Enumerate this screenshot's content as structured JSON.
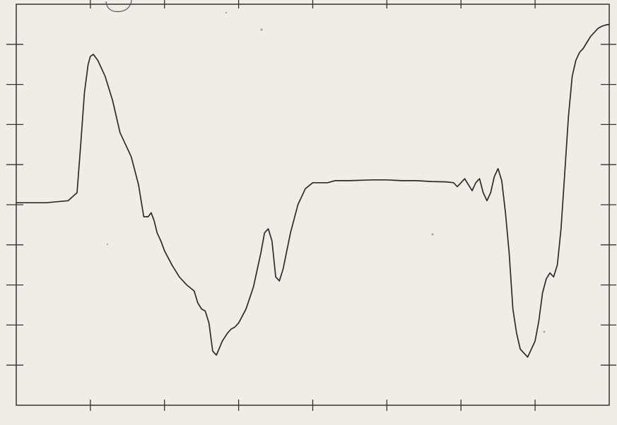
{
  "chart_data": {
    "type": "line",
    "title": "",
    "xlabel": "",
    "ylabel": "",
    "xlim": [
      0,
      8
    ],
    "ylim": [
      0,
      10
    ],
    "grid": false,
    "legend": "none",
    "x_tick_values": [
      1,
      2,
      3,
      4,
      5,
      6,
      7
    ],
    "y_left_tick_values": [
      1,
      2,
      3,
      4,
      5,
      6,
      7,
      8,
      9
    ],
    "y_right_tick_values": [
      1,
      2,
      3,
      4,
      5,
      6,
      7,
      8,
      9
    ],
    "series": [
      {
        "color": "#2b2b2b",
        "x": [
          0.0,
          0.4,
          0.7,
          0.82,
          0.87,
          0.92,
          0.97,
          1.0,
          1.04,
          1.1,
          1.2,
          1.3,
          1.4,
          1.55,
          1.65,
          1.72,
          1.78,
          1.82,
          1.86,
          1.9,
          1.95,
          2.0,
          2.1,
          2.2,
          2.3,
          2.4,
          2.45,
          2.5,
          2.55,
          2.6,
          2.65,
          2.7,
          2.78,
          2.85,
          2.9,
          2.95,
          3.0,
          3.1,
          3.2,
          3.3,
          3.35,
          3.4,
          3.45,
          3.5,
          3.55,
          3.6,
          3.7,
          3.8,
          3.9,
          4.0,
          4.1,
          4.2,
          4.3,
          4.5,
          4.8,
          5.0,
          5.2,
          5.4,
          5.6,
          5.8,
          5.9,
          5.95,
          6.0,
          6.05,
          6.1,
          6.15,
          6.2,
          6.25,
          6.3,
          6.35,
          6.4,
          6.45,
          6.5,
          6.55,
          6.6,
          6.65,
          6.7,
          6.75,
          6.8,
          6.9,
          7.0,
          7.05,
          7.1,
          7.15,
          7.2,
          7.25,
          7.3,
          7.35,
          7.4,
          7.45,
          7.5,
          7.55,
          7.6,
          7.65,
          7.7,
          7.75,
          7.8,
          7.85,
          7.9,
          7.95,
          8.0
        ],
        "values": [
          5.05,
          5.05,
          5.1,
          5.3,
          6.5,
          7.8,
          8.5,
          8.7,
          8.75,
          8.6,
          8.2,
          7.6,
          6.8,
          6.2,
          5.5,
          4.7,
          4.7,
          4.8,
          4.6,
          4.3,
          4.1,
          3.85,
          3.5,
          3.2,
          3.0,
          2.85,
          2.55,
          2.4,
          2.35,
          2.05,
          1.35,
          1.25,
          1.6,
          1.8,
          1.9,
          1.95,
          2.05,
          2.4,
          2.95,
          3.8,
          4.3,
          4.4,
          4.1,
          3.2,
          3.1,
          3.4,
          4.3,
          5.0,
          5.4,
          5.55,
          5.55,
          5.55,
          5.6,
          5.6,
          5.62,
          5.62,
          5.6,
          5.6,
          5.58,
          5.57,
          5.55,
          5.45,
          5.55,
          5.65,
          5.5,
          5.35,
          5.55,
          5.65,
          5.3,
          5.1,
          5.3,
          5.7,
          5.9,
          5.6,
          4.8,
          3.8,
          2.4,
          1.8,
          1.4,
          1.2,
          1.6,
          2.1,
          2.8,
          3.15,
          3.3,
          3.2,
          3.5,
          4.4,
          5.8,
          7.2,
          8.2,
          8.6,
          8.8,
          8.9,
          9.05,
          9.2,
          9.3,
          9.4,
          9.45,
          9.48,
          9.5
        ]
      }
    ]
  }
}
